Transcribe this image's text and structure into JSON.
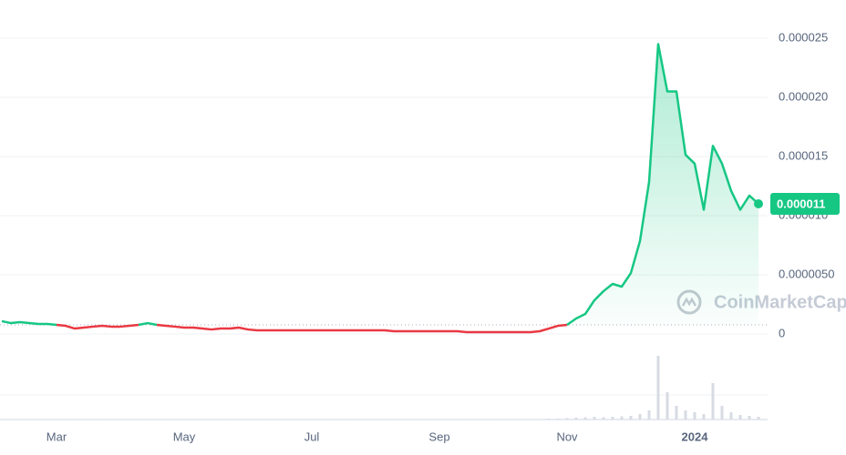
{
  "chart_data": {
    "type": "line",
    "categories": [
      null,
      null,
      null,
      null,
      null,
      null,
      "Mar",
      null,
      null,
      null,
      null,
      null,
      null,
      null,
      null,
      null,
      null,
      null,
      null,
      null,
      "May",
      null,
      null,
      null,
      null,
      null,
      null,
      null,
      null,
      null,
      null,
      null,
      null,
      null,
      "Jul",
      null,
      null,
      null,
      null,
      null,
      null,
      null,
      null,
      null,
      null,
      null,
      null,
      null,
      "Sep",
      null,
      null,
      null,
      null,
      null,
      null,
      null,
      null,
      null,
      null,
      null,
      null,
      null,
      "Nov",
      null,
      null,
      null,
      null,
      null,
      null,
      null,
      null,
      null,
      null,
      null,
      null,
      null,
      "2024",
      null,
      null,
      null,
      null,
      null,
      null,
      null
    ],
    "series": [
      {
        "values": [
          1.08e-06,
          9.2e-07,
          1e-06,
          9.2e-07,
          8.5e-07,
          8.5e-07,
          7.7e-07,
          6.9e-07,
          4.6e-07,
          5.4e-07,
          6.2e-07,
          6.9e-07,
          6.2e-07,
          6.2e-07,
          6.9e-07,
          7.7e-07,
          9.2e-07,
          7.7e-07,
          6.9e-07,
          6.2e-07,
          5.4e-07,
          5.4e-07,
          4.6e-07,
          3.8e-07,
          4.6e-07,
          4.6e-07,
          5.4e-07,
          3.8e-07,
          3.1e-07,
          3.1e-07,
          3.1e-07,
          3.1e-07,
          3.1e-07,
          3.1e-07,
          3.1e-07,
          3.1e-07,
          3.1e-07,
          3.1e-07,
          3.1e-07,
          3.1e-07,
          3.1e-07,
          3.1e-07,
          3.1e-07,
          2.3e-07,
          2.3e-07,
          2.3e-07,
          2.3e-07,
          2.3e-07,
          2.3e-07,
          2.3e-07,
          2.3e-07,
          1.5e-07,
          1.5e-07,
          1.5e-07,
          1.5e-07,
          1.5e-07,
          1.5e-07,
          1.5e-07,
          1.5e-07,
          2.3e-07,
          4.6e-07,
          6.9e-07,
          7.7e-07,
          1.31e-06,
          1.69e-06,
          2.85e-06,
          3.62e-06,
          4.23e-06,
          4e-06,
          5.15e-06,
          7.85e-06,
          1.285e-05,
          2.45e-05,
          2.05e-05,
          2.05e-05,
          1.515e-05,
          1.44e-05,
          1.05e-05,
          1.59e-05,
          1.44e-05,
          1.21e-05,
          1.05e-05,
          1.17e-05,
          1.1e-05
        ],
        "value_labels": {
          "83": "0.000011"
        }
      }
    ],
    "reference_line": 7.7e-07,
    "up_color": "#16c784",
    "down_color": "#ea3943",
    "ylim": [
      0,
      2.82e-05
    ],
    "yticks": [
      0,
      {
        "value": 5e-06,
        "label": "0.0000050"
      },
      {
        "value": 1e-05,
        "label": "0.000010"
      },
      {
        "value": 1.5e-05,
        "label": "0.000015"
      },
      {
        "value": 2e-05,
        "label": "0.000020"
      },
      {
        "value": 2.5e-05,
        "label": "0.000025"
      }
    ],
    "grid": true,
    "volume": [
      0.5,
      0.5,
      0.5,
      0.5,
      0.5,
      0.5,
      0.5,
      0.5,
      0.5,
      0.5,
      0.5,
      0.5,
      0.5,
      0.5,
      0.5,
      0.5,
      0.5,
      0.5,
      0.5,
      0.5,
      0.5,
      0.5,
      0.5,
      0.5,
      0.5,
      0.5,
      0.5,
      0.5,
      0.5,
      0.5,
      0.5,
      0.5,
      0.5,
      0.5,
      0.5,
      0.5,
      0.5,
      0.5,
      0.5,
      0.5,
      0.5,
      0.5,
      0.5,
      0.5,
      0.5,
      0.5,
      0.5,
      0.5,
      0.5,
      0.5,
      0.5,
      0.5,
      0.5,
      0.5,
      0.5,
      0.5,
      0.5,
      0.5,
      0.5,
      0.5,
      1,
      1,
      1.5,
      2,
      2.5,
      3,
      2.5,
      3,
      3.5,
      4,
      6,
      10,
      70,
      30,
      15,
      10,
      8,
      6,
      40,
      15,
      8,
      5,
      4,
      3
    ],
    "volume_ylim": [
      0,
      70
    ],
    "watermark": "CoinMarketCap"
  }
}
